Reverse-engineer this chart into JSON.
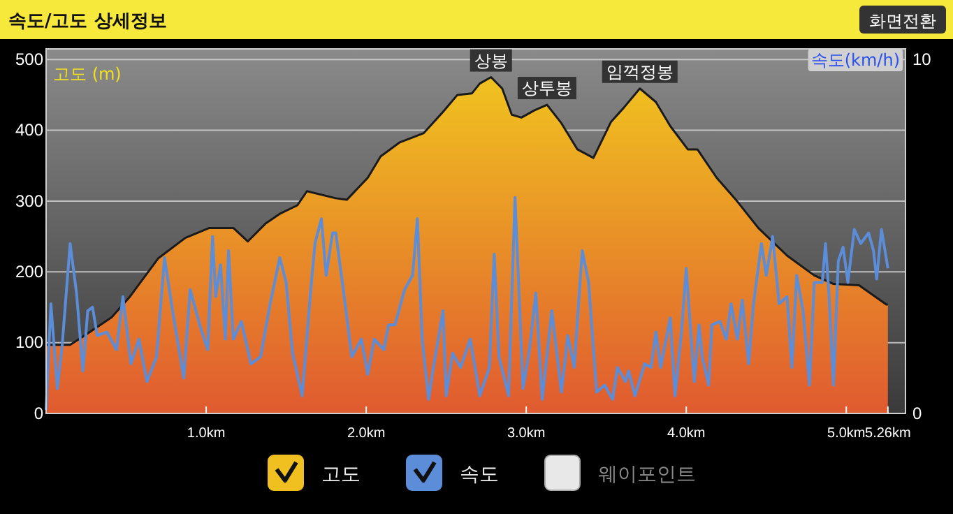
{
  "chart_data": {
    "type": "area",
    "title": "속도/고도 상세정보",
    "ylabel": "고도 (m)",
    "y2label": "속도(km/h)",
    "xlim": [
      0,
      5.37
    ],
    "xticks": [
      {
        "value": 1,
        "label": "1.0km"
      },
      {
        "value": 2,
        "label": "2.0km"
      },
      {
        "value": 3,
        "label": "3.0km"
      },
      {
        "value": 4,
        "label": "4.0km"
      },
      {
        "value": 5,
        "label": "5.0km"
      },
      {
        "value": 5.26,
        "label": "5.26km"
      }
    ],
    "ylim": [
      0,
      515
    ],
    "yticks": [
      0,
      100,
      200,
      300,
      400,
      500
    ],
    "y2lim": [
      0,
      10.3
    ],
    "y2ticks": [
      0,
      10
    ],
    "grid": "y",
    "legend": "bottom",
    "series": [
      {
        "name": "고도",
        "color": "#f0c020",
        "x": [
          0,
          0.15,
          0.24,
          0.41,
          0.52,
          0.7,
          0.87,
          1.02,
          1.17,
          1.26,
          1.37,
          1.46,
          1.57,
          1.63,
          1.81,
          1.88,
          2.01,
          2.09,
          2.21,
          2.36,
          2.48,
          2.57,
          2.66,
          2.71,
          2.78,
          2.85,
          2.91,
          2.97,
          3.05,
          3.13,
          3.22,
          3.32,
          3.42,
          3.53,
          3.61,
          3.71,
          3.81,
          3.9,
          4.01,
          4.07,
          4.19,
          4.31,
          4.45,
          4.63,
          4.8,
          4.92,
          5.08,
          5.25,
          5.26
        ],
        "values": [
          97,
          97,
          110,
          136,
          164,
          219,
          248,
          262,
          262,
          243,
          268,
          282,
          294,
          314,
          304,
          302,
          333,
          363,
          383,
          396,
          426,
          450,
          452,
          466,
          475,
          459,
          422,
          418,
          428,
          436,
          410,
          373,
          361,
          412,
          432,
          459,
          440,
          406,
          373,
          373,
          333,
          302,
          262,
          223,
          195,
          183,
          181,
          154,
          154
        ]
      },
      {
        "name": "속도",
        "type": "line",
        "axis": "y2",
        "color": "#5b8dd9",
        "x": [
          0,
          0.03,
          0.07,
          0.1,
          0.15,
          0.19,
          0.23,
          0.26,
          0.29,
          0.32,
          0.38,
          0.44,
          0.48,
          0.53,
          0.58,
          0.63,
          0.69,
          0.74,
          0.79,
          0.86,
          0.9,
          0.96,
          1.01,
          1.04,
          1.06,
          1.09,
          1.12,
          1.14,
          1.17,
          1.22,
          1.28,
          1.34,
          1.4,
          1.46,
          1.5,
          1.54,
          1.6,
          1.65,
          1.68,
          1.72,
          1.75,
          1.79,
          1.81,
          1.86,
          1.91,
          1.97,
          2.01,
          2.05,
          2.11,
          2.14,
          2.18,
          2.24,
          2.29,
          2.32,
          2.35,
          2.39,
          2.42,
          2.48,
          2.5,
          2.54,
          2.59,
          2.65,
          2.71,
          2.77,
          2.8,
          2.83,
          2.89,
          2.93,
          2.98,
          3.02,
          3.06,
          3.1,
          3.16,
          3.22,
          3.26,
          3.3,
          3.35,
          3.39,
          3.44,
          3.49,
          3.54,
          3.57,
          3.62,
          3.64,
          3.68,
          3.74,
          3.78,
          3.81,
          3.84,
          3.9,
          3.93,
          3.97,
          4.0,
          4.05,
          4.08,
          4.1,
          4.14,
          4.16,
          4.21,
          4.25,
          4.28,
          4.32,
          4.35,
          4.39,
          4.42,
          4.47,
          4.5,
          4.54,
          4.58,
          4.63,
          4.66,
          4.69,
          4.73,
          4.77,
          4.8,
          4.85,
          4.87,
          4.89,
          4.92,
          4.95,
          4.98,
          5.01,
          5.05,
          5.09,
          5.14,
          5.17,
          5.19,
          5.22,
          5.26
        ],
        "values": [
          0.1,
          3.1,
          0.7,
          1.9,
          4.8,
          3.4,
          1.2,
          2.9,
          3.0,
          2.2,
          2.3,
          1.8,
          3.3,
          1.4,
          2.1,
          0.9,
          1.6,
          4.4,
          2.9,
          1.0,
          3.5,
          2.5,
          1.8,
          5.0,
          3.3,
          4.2,
          2.1,
          4.6,
          2.1,
          2.6,
          1.4,
          1.6,
          3.1,
          4.4,
          3.7,
          1.7,
          0.5,
          3.3,
          4.8,
          5.5,
          3.9,
          5.1,
          5.1,
          3.4,
          1.6,
          2.1,
          1.1,
          2.1,
          1.8,
          2.5,
          2.5,
          3.5,
          3.9,
          5.5,
          2.1,
          0.4,
          1.3,
          2.9,
          0.5,
          1.7,
          1.3,
          2.1,
          0.5,
          1.3,
          4.5,
          1.6,
          0.5,
          6.1,
          0.7,
          1.8,
          3.4,
          0.4,
          2.9,
          0.6,
          2.2,
          1.3,
          4.6,
          3.7,
          0.6,
          0.8,
          0.4,
          1.3,
          0.9,
          1.2,
          0.5,
          1.4,
          1.3,
          2.3,
          1.3,
          2.7,
          0.5,
          2.3,
          4.1,
          0.9,
          2.5,
          1.6,
          0.8,
          2.5,
          2.6,
          2.1,
          3.1,
          2.1,
          3.2,
          1.4,
          3.1,
          4.8,
          3.9,
          5.0,
          3.1,
          3.3,
          1.3,
          3.9,
          2.9,
          0.8,
          3.7,
          3.7,
          4.8,
          3.5,
          0.8,
          4.3,
          4.7,
          3.7,
          5.2,
          4.8,
          5.1,
          4.6,
          3.8,
          5.2,
          4.1
        ]
      }
    ],
    "annotations": [
      {
        "text": "상봉",
        "x": 2.78,
        "y": 475
      },
      {
        "text": "상투봉",
        "x": 3.13,
        "y": 436
      },
      {
        "text": "임꺽정봉",
        "x": 3.71,
        "y": 459
      },
      "화면전환",
      "웨이포인트"
    ]
  }
}
